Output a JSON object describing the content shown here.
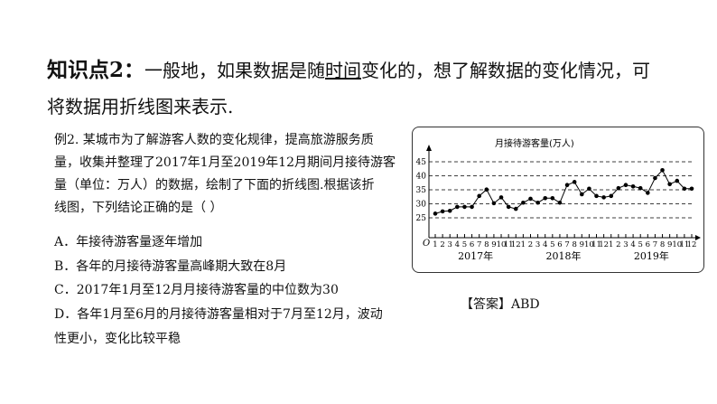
{
  "heading": {
    "label": "知识点2：",
    "text_a": "一般地，如果数据是随",
    "text_u": "时间",
    "text_b": "变化的，想了解数据的变化情况，可",
    "line2": "将数据用折线图来表示."
  },
  "question": {
    "lines": [
      "例2. 某城市为了解游客人数的变化规律，提高旅游服务质",
      "量，收集并整理了2017年1月至2019年12月期间月接待游客",
      "量（单位：万人）的数据，绘制了下面的折线图.根据该折",
      "线图，下列结论正确的是（    ）"
    ],
    "options": [
      "A．年接待游客量逐年增加",
      "B．各年的月接待游客量高峰期大致在8月",
      "C．2017年1月至12月月接待游客量的中位数为30",
      "D．各年1月至6月的月接待游客量相对于7月至12月，波动",
      "性更小，变化比较平稳"
    ]
  },
  "answer": "【答案】ABD",
  "chart_data": {
    "type": "line",
    "title": "月接待游客量(万人)",
    "origin_label": "O",
    "x_ticks": [
      "1",
      "2",
      "3",
      "4",
      "5",
      "6",
      "7",
      "8",
      "9",
      "10",
      "11",
      "12",
      "1",
      "2",
      "3",
      "4",
      "5",
      "6",
      "7",
      "8",
      "9",
      "10",
      "11",
      "12",
      "1",
      "2",
      "3",
      "4",
      "5",
      "6",
      "7",
      "8",
      "9",
      "10",
      "11",
      "12"
    ],
    "year_labels": [
      "2017年",
      "2018年",
      "2019年"
    ],
    "y_ticks": [
      25,
      30,
      35,
      40,
      45
    ],
    "ylim": [
      25,
      45
    ],
    "grid": "dashed horizontal",
    "values": [
      26.5,
      27.3,
      27.5,
      28.9,
      28.9,
      28.9,
      32.8,
      35.1,
      30.2,
      32.3,
      28.9,
      28.2,
      30.4,
      31.8,
      30.4,
      32,
      32,
      30.4,
      36.7,
      37.8,
      33.4,
      35.4,
      32.8,
      32.3,
      32.8,
      35.6,
      36.7,
      36.2,
      35.6,
      33.9,
      39.2,
      42,
      37,
      38.2,
      35.4,
      35.4
    ]
  }
}
